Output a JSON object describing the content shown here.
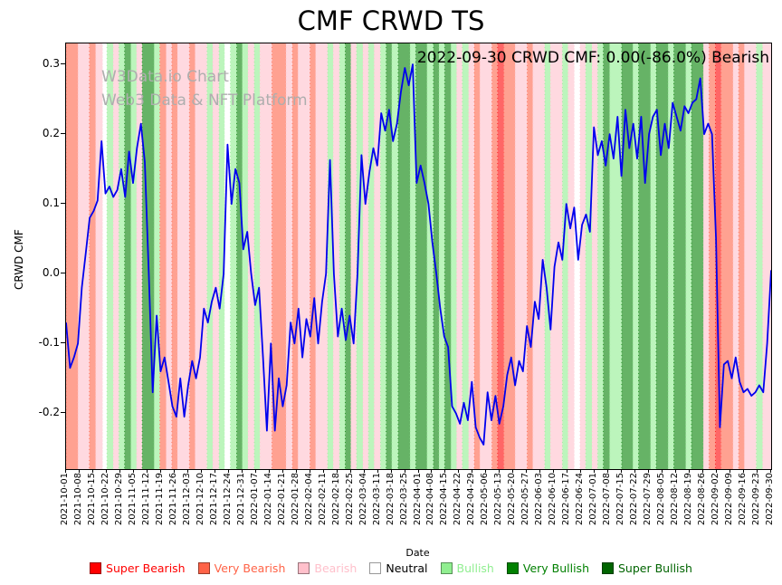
{
  "title": "CMF CRWD TS",
  "annotation": "2022-09-30 CRWD CMF: 0.00(-86.0%) Bearish",
  "watermark": {
    "line1": "W3Data.io Chart",
    "line2": "Web3 Data & NFT Platform"
  },
  "chart_data": {
    "type": "line",
    "title": "CMF CRWD TS",
    "xlabel": "Date",
    "ylabel": "CRWD CMF",
    "ylim": [
      -0.28,
      0.33
    ],
    "y_ticks": [
      "0.3",
      "0.2",
      "0.1",
      "0.0",
      "-0.1",
      "-0.2"
    ],
    "x_ticks": [
      "2021-10-01",
      "2021-10-08",
      "2021-10-15",
      "2021-10-22",
      "2021-10-29",
      "2021-11-05",
      "2021-11-12",
      "2021-11-19",
      "2021-11-26",
      "2021-12-03",
      "2021-12-10",
      "2021-12-17",
      "2021-12-24",
      "2021-12-31",
      "2022-01-07",
      "2022-01-14",
      "2022-01-21",
      "2022-01-28",
      "2022-02-04",
      "2022-02-11",
      "2022-02-18",
      "2022-02-25",
      "2022-03-04",
      "2022-03-11",
      "2022-03-18",
      "2022-03-25",
      "2022-04-01",
      "2022-04-08",
      "2022-04-15",
      "2022-04-22",
      "2022-04-29",
      "2022-05-06",
      "2022-05-13",
      "2022-05-20",
      "2022-05-27",
      "2022-06-03",
      "2022-06-10",
      "2022-06-17",
      "2022-06-24",
      "2022-07-01",
      "2022-07-08",
      "2022-07-15",
      "2022-07-22",
      "2022-07-29",
      "2022-08-05",
      "2022-08-12",
      "2022-08-19",
      "2022-08-26",
      "2022-09-02",
      "2022-09-09",
      "2022-09-16",
      "2022-09-23",
      "2022-09-30"
    ],
    "series": [
      {
        "name": "CRWD CMF",
        "color": "#0000ee",
        "values": [
          -0.07,
          -0.135,
          -0.12,
          -0.1,
          -0.02,
          0.03,
          0.08,
          0.09,
          0.105,
          0.19,
          0.115,
          0.125,
          0.11,
          0.12,
          0.15,
          0.11,
          0.175,
          0.13,
          0.18,
          0.215,
          0.16,
          0.0,
          -0.17,
          -0.06,
          -0.14,
          -0.12,
          -0.155,
          -0.19,
          -0.205,
          -0.15,
          -0.205,
          -0.16,
          -0.125,
          -0.15,
          -0.12,
          -0.05,
          -0.07,
          -0.04,
          -0.02,
          -0.05,
          0.0,
          0.185,
          0.1,
          0.15,
          0.13,
          0.035,
          0.06,
          0.0,
          -0.045,
          -0.02,
          -0.12,
          -0.225,
          -0.1,
          -0.225,
          -0.15,
          -0.19,
          -0.16,
          -0.07,
          -0.1,
          -0.05,
          -0.12,
          -0.065,
          -0.09,
          -0.035,
          -0.1,
          -0.04,
          0.0,
          0.163,
          0.0,
          -0.09,
          -0.05,
          -0.095,
          -0.06,
          -0.1,
          0.0,
          0.17,
          0.1,
          0.145,
          0.18,
          0.155,
          0.23,
          0.205,
          0.235,
          0.19,
          0.215,
          0.26,
          0.295,
          0.27,
          0.3,
          0.13,
          0.155,
          0.13,
          0.1,
          0.045,
          0.0,
          -0.05,
          -0.09,
          -0.105,
          -0.19,
          -0.2,
          -0.215,
          -0.185,
          -0.21,
          -0.155,
          -0.22,
          -0.235,
          -0.245,
          -0.17,
          -0.21,
          -0.175,
          -0.215,
          -0.19,
          -0.145,
          -0.12,
          -0.16,
          -0.125,
          -0.14,
          -0.075,
          -0.105,
          -0.04,
          -0.065,
          0.02,
          -0.02,
          -0.08,
          0.01,
          0.045,
          0.02,
          0.1,
          0.065,
          0.095,
          0.02,
          0.07,
          0.085,
          0.06,
          0.21,
          0.17,
          0.19,
          0.155,
          0.2,
          0.165,
          0.225,
          0.14,
          0.235,
          0.18,
          0.215,
          0.165,
          0.225,
          0.13,
          0.2,
          0.225,
          0.235,
          0.17,
          0.215,
          0.18,
          0.245,
          0.225,
          0.205,
          0.24,
          0.23,
          0.245,
          0.25,
          0.28,
          0.2,
          0.215,
          0.2,
          0.05,
          -0.22,
          -0.13,
          -0.125,
          -0.15,
          -0.12,
          -0.155,
          -0.17,
          -0.165,
          -0.175,
          -0.17,
          -0.16,
          -0.17,
          -0.1,
          0.005
        ]
      }
    ],
    "band_opacity": 0.6,
    "band_colors": {
      "super_bearish": "#ff0000",
      "very_bearish": "#ff6347",
      "bearish": "#ffc0cb",
      "neutral": "#ffffff",
      "bullish": "#90ee90",
      "very_bullish": "#008000",
      "super_bullish": "#006400"
    },
    "bands": [
      [
        0.0,
        0.017,
        "very_bearish"
      ],
      [
        0.017,
        0.033,
        "bearish"
      ],
      [
        0.033,
        0.042,
        "very_bearish"
      ],
      [
        0.042,
        0.052,
        "bearish"
      ],
      [
        0.052,
        0.058,
        "neutral"
      ],
      [
        0.058,
        0.067,
        "bullish"
      ],
      [
        0.067,
        0.075,
        "bearish"
      ],
      [
        0.075,
        0.083,
        "bullish"
      ],
      [
        0.083,
        0.092,
        "very_bullish"
      ],
      [
        0.092,
        0.1,
        "bullish"
      ],
      [
        0.1,
        0.108,
        "bearish"
      ],
      [
        0.108,
        0.125,
        "very_bullish"
      ],
      [
        0.125,
        0.133,
        "bullish"
      ],
      [
        0.133,
        0.142,
        "very_bearish"
      ],
      [
        0.142,
        0.15,
        "bearish"
      ],
      [
        0.15,
        0.158,
        "very_bearish"
      ],
      [
        0.158,
        0.175,
        "bearish"
      ],
      [
        0.175,
        0.183,
        "very_bearish"
      ],
      [
        0.183,
        0.2,
        "bearish"
      ],
      [
        0.2,
        0.208,
        "bullish"
      ],
      [
        0.208,
        0.217,
        "bearish"
      ],
      [
        0.217,
        0.225,
        "bullish"
      ],
      [
        0.225,
        0.233,
        "neutral"
      ],
      [
        0.233,
        0.242,
        "bullish"
      ],
      [
        0.242,
        0.25,
        "very_bullish"
      ],
      [
        0.25,
        0.258,
        "bullish"
      ],
      [
        0.258,
        0.267,
        "bearish"
      ],
      [
        0.267,
        0.275,
        "bullish"
      ],
      [
        0.275,
        0.292,
        "bearish"
      ],
      [
        0.292,
        0.312,
        "very_bearish"
      ],
      [
        0.312,
        0.321,
        "bearish"
      ],
      [
        0.321,
        0.329,
        "very_bearish"
      ],
      [
        0.329,
        0.346,
        "bearish"
      ],
      [
        0.346,
        0.354,
        "very_bearish"
      ],
      [
        0.354,
        0.371,
        "bearish"
      ],
      [
        0.371,
        0.379,
        "bullish"
      ],
      [
        0.379,
        0.388,
        "bearish"
      ],
      [
        0.388,
        0.396,
        "bullish"
      ],
      [
        0.396,
        0.404,
        "very_bullish"
      ],
      [
        0.404,
        0.412,
        "bearish"
      ],
      [
        0.412,
        0.421,
        "bullish"
      ],
      [
        0.421,
        0.429,
        "bearish"
      ],
      [
        0.429,
        0.437,
        "bullish"
      ],
      [
        0.437,
        0.446,
        "bearish"
      ],
      [
        0.446,
        0.454,
        "bullish"
      ],
      [
        0.454,
        0.462,
        "very_bullish"
      ],
      [
        0.462,
        0.471,
        "bullish"
      ],
      [
        0.471,
        0.488,
        "very_bullish"
      ],
      [
        0.488,
        0.496,
        "bullish"
      ],
      [
        0.496,
        0.512,
        "very_bullish"
      ],
      [
        0.512,
        0.521,
        "bullish"
      ],
      [
        0.521,
        0.529,
        "very_bullish"
      ],
      [
        0.529,
        0.537,
        "bullish"
      ],
      [
        0.537,
        0.546,
        "very_bullish"
      ],
      [
        0.546,
        0.554,
        "bullish"
      ],
      [
        0.554,
        0.562,
        "bearish"
      ],
      [
        0.562,
        0.571,
        "bullish"
      ],
      [
        0.571,
        0.579,
        "bearish"
      ],
      [
        0.579,
        0.587,
        "very_bearish"
      ],
      [
        0.587,
        0.604,
        "bearish"
      ],
      [
        0.604,
        0.612,
        "very_bearish"
      ],
      [
        0.612,
        0.621,
        "super_bearish"
      ],
      [
        0.621,
        0.637,
        "very_bearish"
      ],
      [
        0.637,
        0.654,
        "bearish"
      ],
      [
        0.654,
        0.662,
        "very_bearish"
      ],
      [
        0.662,
        0.679,
        "bearish"
      ],
      [
        0.679,
        0.687,
        "bullish"
      ],
      [
        0.687,
        0.704,
        "bearish"
      ],
      [
        0.704,
        0.712,
        "bullish"
      ],
      [
        0.712,
        0.721,
        "bearish"
      ],
      [
        0.721,
        0.729,
        "neutral"
      ],
      [
        0.729,
        0.737,
        "bearish"
      ],
      [
        0.737,
        0.746,
        "bullish"
      ],
      [
        0.746,
        0.754,
        "bearish"
      ],
      [
        0.754,
        0.762,
        "bullish"
      ],
      [
        0.762,
        0.771,
        "very_bullish"
      ],
      [
        0.771,
        0.788,
        "bullish"
      ],
      [
        0.788,
        0.804,
        "very_bullish"
      ],
      [
        0.804,
        0.812,
        "bullish"
      ],
      [
        0.812,
        0.829,
        "very_bullish"
      ],
      [
        0.829,
        0.837,
        "bullish"
      ],
      [
        0.837,
        0.854,
        "very_bullish"
      ],
      [
        0.854,
        0.862,
        "bullish"
      ],
      [
        0.862,
        0.879,
        "very_bullish"
      ],
      [
        0.879,
        0.887,
        "bullish"
      ],
      [
        0.887,
        0.904,
        "very_bullish"
      ],
      [
        0.904,
        0.912,
        "bearish"
      ],
      [
        0.912,
        0.921,
        "very_bearish"
      ],
      [
        0.921,
        0.929,
        "super_bearish"
      ],
      [
        0.929,
        0.946,
        "very_bearish"
      ],
      [
        0.946,
        0.954,
        "bearish"
      ],
      [
        0.954,
        0.962,
        "very_bearish"
      ],
      [
        0.962,
        0.979,
        "bearish"
      ],
      [
        0.979,
        0.988,
        "bullish"
      ],
      [
        0.988,
        1.0,
        "bearish"
      ]
    ],
    "legend": [
      {
        "label": "Super Bearish",
        "color": "#ff0000"
      },
      {
        "label": "Very Bearish",
        "color": "#ff6347"
      },
      {
        "label": "Bearish",
        "color": "#ffc0cb"
      },
      {
        "label": "Neutral",
        "color": "#ffffff",
        "text_color": "#000000"
      },
      {
        "label": "Bullish",
        "color": "#90ee90"
      },
      {
        "label": "Very Bullish",
        "color": "#008000"
      },
      {
        "label": "Super Bullish",
        "color": "#006400"
      }
    ]
  }
}
